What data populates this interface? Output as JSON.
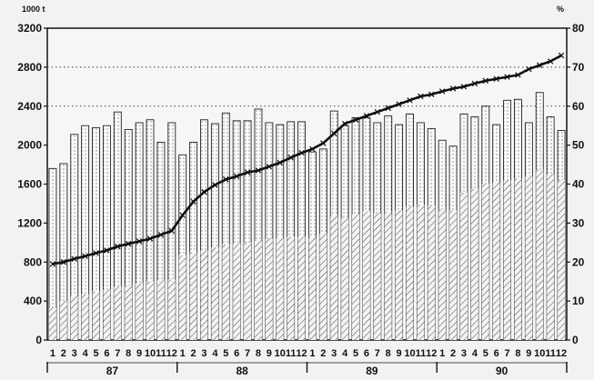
{
  "chart_data": {
    "type": "bar",
    "left_unit": "1000 t",
    "right_unit": "%",
    "left_ylim": [
      0,
      3200
    ],
    "right_ylim": [
      0,
      80
    ],
    "left_ticks": [
      "0",
      "400",
      "800",
      "1200",
      "1600",
      "2000",
      "2400",
      "2800",
      "3200"
    ],
    "right_ticks": [
      "0",
      "10",
      "20",
      "30",
      "40",
      "50",
      "60",
      "70",
      "80"
    ],
    "years": [
      "87",
      "88",
      "89",
      "90"
    ],
    "months": [
      "1",
      "2",
      "3",
      "4",
      "5",
      "6",
      "7",
      "8",
      "9",
      "10",
      "11",
      "12",
      "1",
      "2",
      "3",
      "4",
      "5",
      "6",
      "7",
      "8",
      "9",
      "10",
      "11",
      "12",
      "1",
      "2",
      "3",
      "4",
      "5",
      "6",
      "7",
      "8",
      "9",
      "10",
      "11",
      "12",
      "1",
      "2",
      "3",
      "4",
      "5",
      "6",
      "7",
      "8",
      "9",
      "10",
      "11",
      "12"
    ],
    "grid": "horizontal dotted at 2800 and 2400",
    "series": [
      {
        "style": "dotted bar",
        "values": [
          1760,
          1810,
          2110,
          2200,
          2180,
          2200,
          2340,
          2160,
          2230,
          2260,
          2030,
          2230,
          1900,
          2030,
          2260,
          2220,
          2330,
          2250,
          2250,
          2370,
          2230,
          2210,
          2240,
          2240,
          1930,
          1960,
          2350,
          2200,
          2280,
          2280,
          2230,
          2300,
          2210,
          2320,
          2230,
          2170,
          2050,
          1990,
          2320,
          2290,
          2400,
          2210,
          2460,
          2470,
          2230,
          2540,
          2290,
          2150
        ]
      },
      {
        "style": "hatched bar",
        "values": [
          330,
          400,
          460,
          470,
          500,
          520,
          550,
          560,
          580,
          600,
          620,
          620,
          870,
          900,
          920,
          950,
          980,
          990,
          1000,
          1030,
          1040,
          1050,
          1060,
          1060,
          1060,
          1090,
          1280,
          1260,
          1290,
          1320,
          1300,
          1310,
          1330,
          1370,
          1390,
          1380,
          1340,
          1330,
          1510,
          1550,
          1600,
          1620,
          1640,
          1660,
          1680,
          1750,
          1700,
          1640
        ]
      },
      {
        "style": "line with cross markers",
        "axis": "right",
        "values": [
          19.5,
          20.0,
          20.8,
          21.5,
          22.3,
          23.0,
          24.0,
          24.7,
          25.3,
          26.0,
          27.0,
          28.0,
          32.0,
          35.5,
          38.0,
          39.8,
          41.2,
          42.0,
          43.0,
          43.5,
          44.5,
          45.5,
          46.8,
          48.0,
          49.0,
          50.5,
          53.0,
          55.5,
          56.5,
          57.5,
          58.5,
          59.5,
          60.5,
          61.5,
          62.5,
          63.0,
          63.8,
          64.5,
          65.0,
          65.8,
          66.5,
          67.0,
          67.5,
          68.0,
          69.5,
          70.5,
          71.5,
          73.0
        ]
      }
    ]
  }
}
